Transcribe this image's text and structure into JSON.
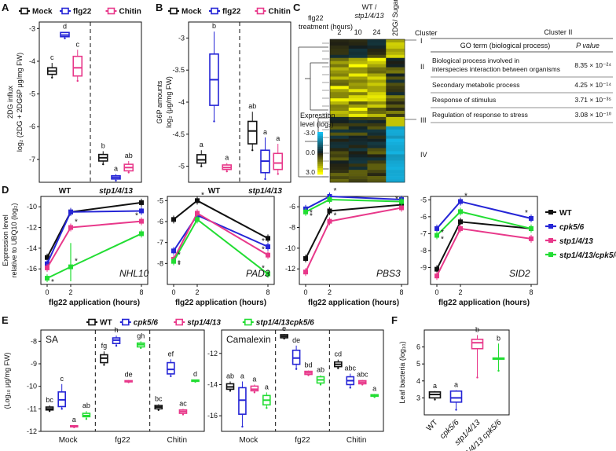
{
  "colors": {
    "WT": "#111111",
    "flg22": "#2525d6",
    "cpk56": "#2525d6",
    "Chitin": "#e8388a",
    "stp": "#e8388a",
    "dko": "#22dd33"
  },
  "chart_data": [
    {
      "panel": "A",
      "type": "box",
      "legend": [
        "Mock",
        "flg22",
        "Chitin"
      ],
      "ylabel": [
        "2DG influx",
        "log₂ (2DG + 2DG6P μg/mg FW)"
      ],
      "ylim": [
        -7.7,
        -2.8
      ],
      "yticks": [
        -3,
        -4,
        -5,
        -6,
        -7
      ],
      "groups": [
        "WT",
        "stp1/4/13"
      ],
      "series": [
        {
          "group": 0,
          "cond": 0,
          "q1": -4.4,
          "med": -4.3,
          "q3": -4.2,
          "lo": -4.5,
          "hi": -4.05,
          "sig": "c"
        },
        {
          "group": 0,
          "cond": 1,
          "q1": -3.25,
          "med": -3.2,
          "q3": -3.12,
          "lo": -3.3,
          "hi": -3.1,
          "sig": "d"
        },
        {
          "group": 0,
          "cond": 2,
          "q1": -4.45,
          "med": -4.2,
          "q3": -3.85,
          "lo": -4.6,
          "hi": -3.65,
          "sig": "c"
        },
        {
          "group": 1,
          "cond": 0,
          "q1": -7.05,
          "med": -6.95,
          "q3": -6.85,
          "lo": -7.15,
          "hi": -6.75,
          "sig": "b"
        },
        {
          "group": 1,
          "cond": 1,
          "q1": -7.6,
          "med": -7.55,
          "q3": -7.5,
          "lo": -7.65,
          "hi": -7.45,
          "sig": "a"
        },
        {
          "group": 1,
          "cond": 2,
          "q1": -7.35,
          "med": -7.25,
          "q3": -7.15,
          "lo": -7.4,
          "hi": -7.05,
          "sig": "ab"
        }
      ]
    },
    {
      "panel": "B",
      "type": "box",
      "legend": [
        "Mock",
        "flg22",
        "Chitin"
      ],
      "ylabel": [
        "G6P amounts",
        "log₂ (μg/mg FW)"
      ],
      "ylim": [
        -5.25,
        -2.75
      ],
      "yticks": [
        -3.0,
        -3.5,
        -4.0,
        -4.5,
        -5.0
      ],
      "groups": [
        "WT",
        "stp1/4/13"
      ],
      "series": [
        {
          "group": 0,
          "cond": 0,
          "q1": -4.95,
          "med": -4.9,
          "q3": -4.82,
          "lo": -5.0,
          "hi": -4.75,
          "sig": "a"
        },
        {
          "group": 0,
          "cond": 1,
          "q1": -4.05,
          "med": -3.65,
          "q3": -3.25,
          "lo": -4.3,
          "hi": -2.9,
          "sig": "b"
        },
        {
          "group": 0,
          "cond": 2,
          "q1": -5.05,
          "med": -5.02,
          "q3": -4.98,
          "lo": -5.08,
          "hi": -4.95,
          "sig": "a"
        },
        {
          "group": 1,
          "cond": 0,
          "q1": -4.65,
          "med": -4.45,
          "q3": -4.3,
          "lo": -4.75,
          "hi": -4.15,
          "sig": "ab"
        },
        {
          "group": 1,
          "cond": 1,
          "q1": -5.1,
          "med": -4.92,
          "q3": -4.75,
          "lo": -5.2,
          "hi": -4.55,
          "sig": "a"
        },
        {
          "group": 1,
          "cond": 2,
          "q1": -5.05,
          "med": -4.95,
          "q3": -4.8,
          "lo": -5.12,
          "hi": -4.65,
          "sig": "a"
        }
      ]
    },
    {
      "panel": "C",
      "type": "heatmap",
      "title": "WT / stp1/4/13",
      "row_label": "flg22 treatment (hours)",
      "columns": [
        "2",
        "10",
        "24",
        "2DG/ Sugar-free"
      ],
      "legend_title": [
        "Expression",
        "level (log₂)"
      ],
      "legend_ticks": [
        "-3.0",
        "0.0",
        "3.0"
      ],
      "clusters": [
        "I",
        "II",
        "III",
        "IV"
      ],
      "table": {
        "heading": "Cluster II",
        "headers": [
          "GO term (biological process)",
          "P value"
        ],
        "rows": [
          [
            "Biological process involved in interspecies interaction between organisms",
            "8.35 × 10⁻²⁴"
          ],
          [
            "Secondary metabolic process",
            "4.25 × 10⁻¹⁴"
          ],
          [
            "Response of stimulus",
            "3.71 × 10⁻³⁵"
          ],
          [
            "Regulation of response to stress",
            "3.08 × 10⁻¹⁰"
          ]
        ]
      },
      "cluster_label": "Cluster"
    },
    {
      "panel": "D",
      "type": "line",
      "ylabel": [
        "Expression level",
        "relative to UBQ10 (log₂)"
      ],
      "xlabel": "flg22 application (hours)",
      "legend": [
        "WT",
        "cpk5/6",
        "stp1/4/13",
        "stp1/4/13/cpk5/6"
      ],
      "subplots": [
        {
          "gene": "NHL10",
          "x": [
            0,
            2,
            8
          ],
          "ylim": [
            -17.5,
            -9
          ],
          "yticks": [
            -10,
            -12,
            -14,
            -16
          ],
          "series": [
            [
              -14.9,
              -10.5,
              -9.6
            ],
            [
              -15.5,
              -10.5,
              -10.4
            ],
            [
              -15.9,
              -12.0,
              -11.4
            ],
            [
              -16.9,
              -15.8,
              -12.6
            ]
          ]
        },
        {
          "gene": "PAD3",
          "x": [
            0,
            2,
            8
          ],
          "ylim": [
            -9,
            -4.8
          ],
          "yticks": [
            -5,
            -6,
            -7,
            -8
          ],
          "series": [
            [
              -5.9,
              -5.0,
              -6.8
            ],
            [
              -7.4,
              -5.7,
              -7.2
            ],
            [
              -7.8,
              -5.6,
              -7.6
            ],
            [
              -7.9,
              -5.9,
              -8.5
            ]
          ]
        },
        {
          "gene": "PBS3",
          "x": [
            0,
            2,
            8
          ],
          "ylim": [
            -13.5,
            -5
          ],
          "yticks": [
            -6,
            -8,
            -10,
            -12
          ],
          "series": [
            [
              -11.0,
              -6.4,
              -5.8
            ],
            [
              -6.2,
              -5.0,
              -5.3
            ],
            [
              -12.3,
              -7.4,
              -6.1
            ],
            [
              -6.5,
              -5.3,
              -5.5
            ]
          ]
        },
        {
          "gene": "SID2",
          "x": [
            0,
            2,
            8
          ],
          "ylim": [
            -10,
            -4.8
          ],
          "yticks": [
            -5,
            -6,
            -7,
            -8,
            -9
          ],
          "series": [
            [
              -9.1,
              -6.3,
              -6.7
            ],
            [
              -6.7,
              -5.1,
              -6.1
            ],
            [
              -9.5,
              -6.7,
              -7.3
            ],
            [
              -7.1,
              -5.7,
              -6.7
            ]
          ]
        }
      ]
    },
    {
      "panel": "E",
      "type": "box",
      "legend": [
        "WT",
        "cpk5/6",
        "stp1/4/13",
        "stp1/4/13cpk5/6"
      ],
      "ylabel": "(Log₁₀ μg/mg FW)",
      "groups": [
        "Mock",
        "fg22",
        "Chitin"
      ],
      "subplots": [
        {
          "title": "SA",
          "ylim": [
            -12,
            -7.5
          ],
          "yticks": [
            -8,
            -9,
            -10,
            -11,
            -12
          ],
          "boxes": [
            {
              "g": 0,
              "c": 0,
              "q1": -11.05,
              "med": -11.0,
              "q3": -10.92,
              "lo": -11.1,
              "hi": -10.85,
              "sig": "bc"
            },
            {
              "g": 0,
              "c": 1,
              "q1": -10.9,
              "med": -10.6,
              "q3": -10.25,
              "lo": -11.0,
              "hi": -9.9,
              "sig": "c"
            },
            {
              "g": 0,
              "c": 2,
              "q1": -11.8,
              "med": -11.78,
              "q3": -11.75,
              "lo": -11.82,
              "hi": -11.72,
              "sig": "a"
            },
            {
              "g": 0,
              "c": 3,
              "q1": -11.35,
              "med": -11.3,
              "q3": -11.2,
              "lo": -11.45,
              "hi": -11.1,
              "sig": "ab"
            },
            {
              "g": 1,
              "c": 0,
              "q1": -8.95,
              "med": -8.75,
              "q3": -8.6,
              "lo": -9.05,
              "hi": -8.45,
              "sig": "fg"
            },
            {
              "g": 1,
              "c": 1,
              "q1": -8.1,
              "med": -7.95,
              "q3": -7.85,
              "lo": -8.2,
              "hi": -7.75,
              "sig": "h"
            },
            {
              "g": 1,
              "c": 2,
              "q1": -9.8,
              "med": -9.78,
              "q3": -9.75,
              "lo": -9.82,
              "hi": -9.72,
              "sig": "de"
            },
            {
              "g": 1,
              "c": 3,
              "q1": -8.25,
              "med": -8.15,
              "q3": -8.08,
              "lo": -8.3,
              "hi": -8.0,
              "sig": "gh"
            },
            {
              "g": 2,
              "c": 0,
              "q1": -11.0,
              "med": -10.92,
              "q3": -10.85,
              "lo": -11.05,
              "hi": -10.8,
              "sig": "bc"
            },
            {
              "g": 2,
              "c": 1,
              "q1": -9.45,
              "med": -9.25,
              "q3": -8.95,
              "lo": -9.55,
              "hi": -8.8,
              "sig": "ef"
            },
            {
              "g": 2,
              "c": 2,
              "q1": -11.2,
              "med": -11.12,
              "q3": -11.05,
              "lo": -11.25,
              "hi": -11.0,
              "sig": "ac"
            },
            {
              "g": 2,
              "c": 3,
              "q1": -9.78,
              "med": -9.75,
              "q3": -9.72,
              "lo": -9.8,
              "hi": -9.7,
              "sig": "d"
            }
          ]
        },
        {
          "title": "Camalexin",
          "ylim": [
            -17,
            -10.5
          ],
          "yticks": [
            -12,
            -14,
            -16
          ],
          "boxes": [
            {
              "g": 0,
              "c": 0,
              "q1": -14.3,
              "med": -14.15,
              "q3": -13.95,
              "lo": -14.4,
              "hi": -13.8,
              "sig": "ab"
            },
            {
              "g": 0,
              "c": 1,
              "q1": -15.9,
              "med": -15.0,
              "q3": -14.2,
              "lo": -16.7,
              "hi": -13.8,
              "sig": "a"
            },
            {
              "g": 0,
              "c": 2,
              "q1": -14.4,
              "med": -14.3,
              "q3": -14.1,
              "lo": -14.5,
              "hi": -14.0,
              "sig": "a"
            },
            {
              "g": 0,
              "c": 3,
              "q1": -15.3,
              "med": -15.0,
              "q3": -14.7,
              "lo": -15.5,
              "hi": -14.5,
              "sig": "a"
            },
            {
              "g": 1,
              "c": 0,
              "q1": -11.0,
              "med": -10.9,
              "q3": -10.8,
              "lo": -11.05,
              "hi": -10.75,
              "sig": "e"
            },
            {
              "g": 1,
              "c": 1,
              "q1": -12.7,
              "med": -12.3,
              "q3": -11.8,
              "lo": -13.0,
              "hi": -11.5,
              "sig": "de"
            },
            {
              "g": 1,
              "c": 2,
              "q1": -13.35,
              "med": -13.25,
              "q3": -13.15,
              "lo": -13.4,
              "hi": -13.1,
              "sig": "bd"
            },
            {
              "g": 1,
              "c": 3,
              "q1": -13.9,
              "med": -13.7,
              "q3": -13.5,
              "lo": -14.0,
              "hi": -13.4,
              "sig": "ab"
            },
            {
              "g": 2,
              "c": 0,
              "q1": -12.85,
              "med": -12.7,
              "q3": -12.55,
              "lo": -12.95,
              "hi": -12.4,
              "sig": "cd"
            },
            {
              "g": 2,
              "c": 1,
              "q1": -14.0,
              "med": -13.75,
              "q3": -13.5,
              "lo": -14.2,
              "hi": -13.3,
              "sig": "abc"
            },
            {
              "g": 2,
              "c": 2,
              "q1": -13.95,
              "med": -13.85,
              "q3": -13.75,
              "lo": -14.0,
              "hi": -13.7,
              "sig": "abc"
            },
            {
              "g": 2,
              "c": 3,
              "q1": -14.75,
              "med": -14.7,
              "q3": -14.65,
              "lo": -14.8,
              "hi": -14.6,
              "sig": "a"
            }
          ]
        }
      ]
    },
    {
      "panel": "F",
      "type": "box",
      "ylabel": "Leaf bacteria (log₁₀)",
      "ylim": [
        2,
        7
      ],
      "yticks": [
        3,
        4,
        5,
        6
      ],
      "categories": [
        "WT",
        "cpk5/6",
        "stp1/4/13",
        "stp1/4/13 cpk5/6"
      ],
      "boxes": [
        {
          "c": 0,
          "q1": 3.0,
          "med": 3.2,
          "q3": 3.35,
          "lo": 2.9,
          "hi": 3.4,
          "sig": "a"
        },
        {
          "c": 2,
          "q1": 2.75,
          "med": 3.0,
          "q3": 3.4,
          "lo": 2.3,
          "hi": 3.45,
          "sig": "a"
        },
        {
          "c": 1,
          "q1": 5.9,
          "med": 6.25,
          "q3": 6.45,
          "lo": 4.2,
          "hi": 6.7,
          "sig": "b"
        },
        {
          "c": 3,
          "q1": 5.3,
          "med": 5.32,
          "q3": 5.35,
          "lo": 4.6,
          "hi": 6.2,
          "sig": "b"
        }
      ]
    }
  ]
}
